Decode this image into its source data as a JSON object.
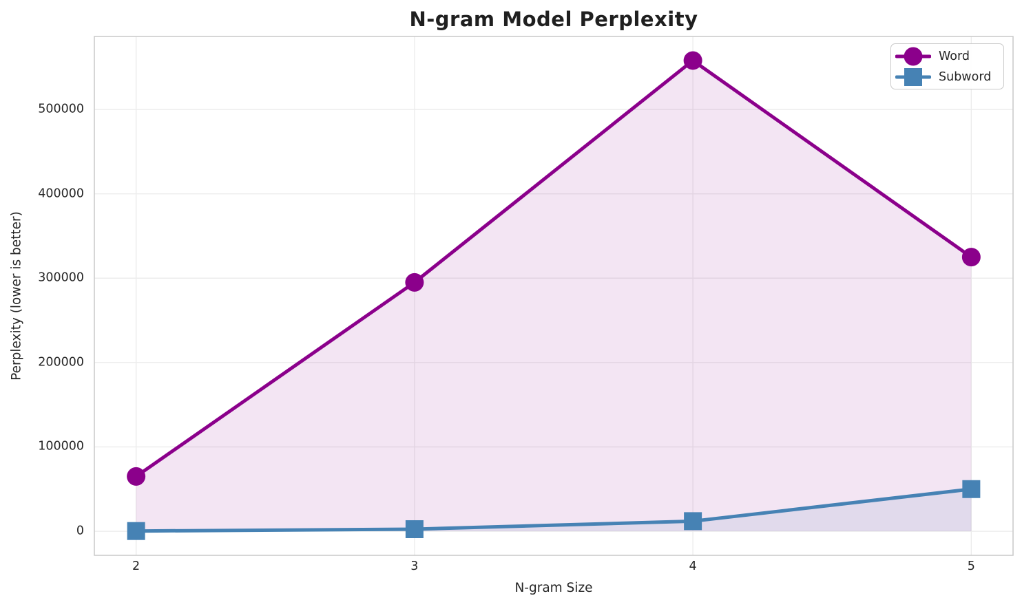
{
  "chart_data": {
    "type": "line",
    "title": "N-gram Model Perplexity",
    "xlabel": "N-gram Size",
    "ylabel": "Perplexity (lower is better)",
    "x": [
      2,
      3,
      4,
      5
    ],
    "x_tick_labels": [
      "2",
      "3",
      "4",
      "5"
    ],
    "y_ticks": [
      0,
      100000,
      200000,
      300000,
      400000,
      500000
    ],
    "y_tick_labels": [
      "0",
      "100000",
      "200000",
      "300000",
      "400000",
      "500000"
    ],
    "xlim": [
      1.85,
      5.15
    ],
    "ylim": [
      -28500,
      586500
    ],
    "grid": true,
    "legend_position": "upper right",
    "fill_alpha": 0.1,
    "fill_baseline": 0,
    "series": [
      {
        "name": "Word",
        "color": "#8B008B",
        "marker": "circle",
        "values": [
          65000,
          295000,
          558000,
          325000
        ]
      },
      {
        "name": "Subword",
        "color": "#4682B4",
        "marker": "square",
        "values": [
          300,
          2500,
          12000,
          50000
        ]
      }
    ],
    "colors": {
      "background": "#ffffff",
      "grid": "#ececec",
      "spine": "#c9c9c9",
      "text": "#262626",
      "title": "#1f1f1f"
    }
  }
}
